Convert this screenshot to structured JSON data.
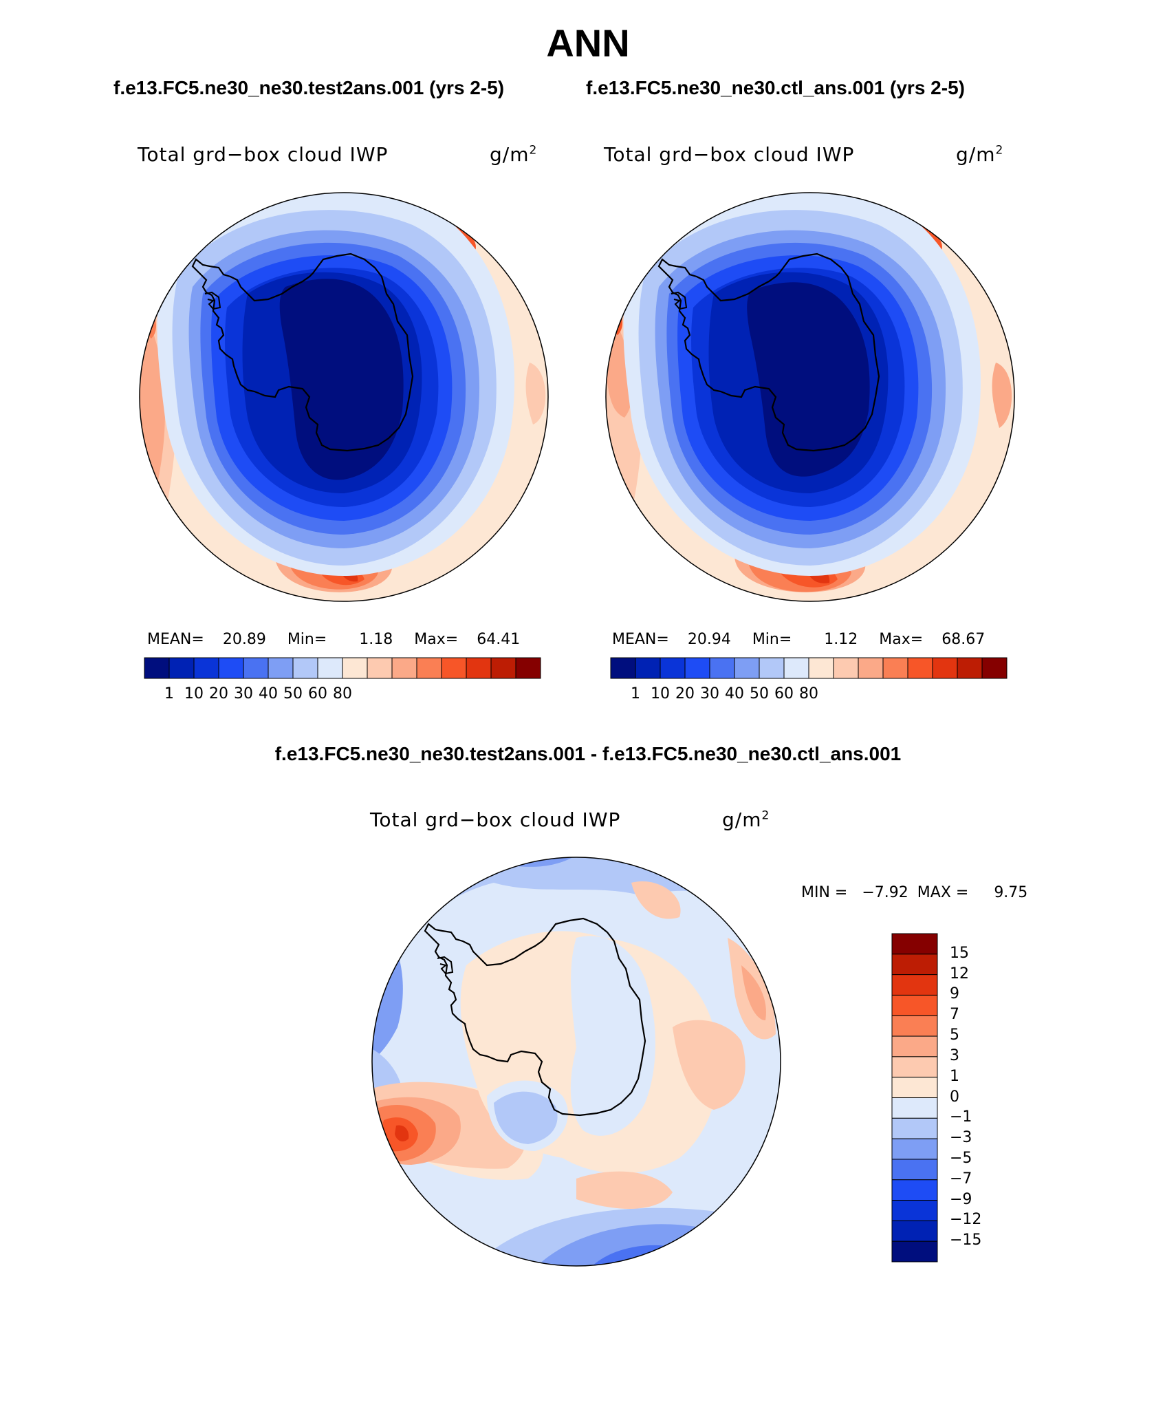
{
  "figure": {
    "season": "ANN",
    "case_test_title": "f.e13.FC5.ne30_ne30.test2ans.001 (yrs 2-5)",
    "case_ctl_title": "f.e13.FC5.ne30_ne30.ctl_ans.001 (yrs 2-5)",
    "diff_title": "f.e13.FC5.ne30_ne30.test2ans.001 - f.e13.FC5.ne30_ne30.ctl_ans.001"
  },
  "panels": [
    {
      "variable": "Total grd−box cloud IWP",
      "units_base": "g/m",
      "units_exp": "2",
      "stats": {
        "mean_label": "MEAN=",
        "mean": "20.89",
        "min_label": "Min=",
        "min": "1.18",
        "max_label": "Max=",
        "max": "64.41"
      }
    },
    {
      "variable": "Total grd−box cloud IWP",
      "units_base": "g/m",
      "units_exp": "2",
      "stats": {
        "mean_label": "MEAN=",
        "mean": "20.94",
        "min_label": "Min=",
        "min": "1.12",
        "max_label": "Max=",
        "max": "68.67"
      }
    },
    {
      "variable": "Total grd−box cloud IWP",
      "units_base": "g/m",
      "units_exp": "2",
      "stats": {
        "min_label": "MIN =",
        "min": "−7.92",
        "max_label": "MAX =",
        "max": "9.75"
      }
    }
  ],
  "colorbar_main": {
    "colors": [
      "#000e7e",
      "#0022b4",
      "#0a34d8",
      "#1e4cf5",
      "#4a72f2",
      "#7e9ef4",
      "#b2c8f8",
      "#dde9fb",
      "#fde7d4",
      "#fdcab0",
      "#fba988",
      "#fa7f54",
      "#f75628",
      "#e23510",
      "#bd1d04",
      "#850000"
    ],
    "tick_labels": [
      "1",
      "10",
      "20",
      "30",
      "40",
      "50",
      "60",
      "80"
    ]
  },
  "colorbar_diff": {
    "colors": [
      "#850000",
      "#bd1d04",
      "#e23510",
      "#f75628",
      "#fa7f54",
      "#fba988",
      "#fdcab0",
      "#fde7d4",
      "#dde9fb",
      "#b2c8f8",
      "#7e9ef4",
      "#4a72f2",
      "#1e4cf5",
      "#0a34d8",
      "#0022b4",
      "#000e7e"
    ],
    "tick_labels": [
      "15",
      "12",
      "9",
      "7",
      "5",
      "3",
      "1",
      "0",
      "−1",
      "−3",
      "−5",
      "−7",
      "−9",
      "−12",
      "−15"
    ]
  },
  "map_colors": {
    "deep": "#000e7e",
    "d1": "#0022b4",
    "d2": "#0a34d8",
    "d3": "#1e4cf5",
    "d4": "#4a72f2",
    "d5": "#7e9ef4",
    "d6": "#b2c8f8",
    "d7": "#dde9fb",
    "w1": "#fde7d4",
    "w2": "#fdcab0",
    "w3": "#fba988",
    "w4": "#fa7f54",
    "w5": "#f75628",
    "w6": "#e23510",
    "w7": "#bd1d04",
    "w8": "#850000"
  }
}
